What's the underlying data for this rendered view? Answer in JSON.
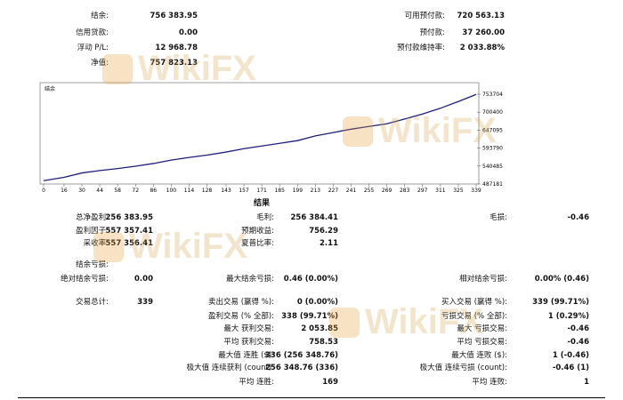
{
  "account": {
    "rows": [
      [
        [
          "结余:",
          "756 383.95"
        ],
        [
          "可用预付款:",
          "720 563.13"
        ]
      ],
      [
        [
          "信用贷款:",
          "0.00"
        ],
        [
          "预付款:",
          "37 260.00"
        ]
      ],
      [
        [
          "浮动 P/L:",
          "12 968.78"
        ],
        [
          "预付款维持率:",
          "2 033.88%"
        ]
      ],
      [
        [
          "净值:",
          "757 823.13"
        ],
        null
      ]
    ]
  },
  "chart_data": {
    "type": "line",
    "title": "结余",
    "x": [
      0,
      16,
      30,
      44,
      58,
      72,
      86,
      100,
      114,
      128,
      143,
      157,
      171,
      185,
      199,
      213,
      227,
      241,
      255,
      269,
      283,
      297,
      311,
      325,
      339
    ],
    "series": [
      {
        "name": "结余",
        "color": "#1c1f7a",
        "values": [
          497000,
          507000,
          520000,
          527000,
          533000,
          540000,
          548000,
          558000,
          566000,
          573000,
          582000,
          592000,
          600000,
          608000,
          616000,
          630000,
          640000,
          650000,
          658000,
          666000,
          680000,
          695000,
          712000,
          732000,
          753000
        ]
      }
    ],
    "xlim": [
      0,
      339
    ],
    "xticks": [
      0,
      16,
      30,
      44,
      58,
      72,
      86,
      100,
      114,
      128,
      143,
      157,
      171,
      185,
      199,
      213,
      227,
      241,
      255,
      269,
      283,
      297,
      311,
      325,
      339
    ],
    "ylim": [
      487181,
      753704
    ],
    "yticks": [
      487181,
      540485,
      593790,
      647095,
      700400,
      753704
    ]
  },
  "results": {
    "heading": "结果",
    "rows": [
      [
        [
          "总净盈利:",
          "256 383.95"
        ],
        [
          "毛利:",
          "256 384.41"
        ],
        [
          "毛损:",
          "-0.46"
        ]
      ],
      [
        [
          "盈利因子:",
          "557 357.41"
        ],
        [
          "预期收益:",
          "756.29"
        ],
        null
      ],
      [
        [
          "采收率:",
          "557 356.41"
        ],
        [
          "夏普比率:",
          "2.11"
        ],
        null
      ],
      [
        [
          "结余亏损:"
        ],
        null,
        null
      ],
      [
        [
          "绝对结余亏损:",
          "0.00"
        ],
        [
          "最大结余亏损:",
          "0.46 (0.00%)"
        ],
        [
          "相对结余亏损:",
          "0.00% (0.46)"
        ]
      ],
      [
        [
          "交易总计:",
          "339"
        ],
        [
          "卖出交易 (赢得 %):",
          "0 (0.00%)"
        ],
        [
          "买入交易 (赢得 %):",
          "339 (99.71%)"
        ]
      ],
      [
        null,
        [
          "盈利交易 (% 全部):",
          "338 (99.71%)"
        ],
        [
          "亏损交易 (% 全部):",
          "1 (0.29%)"
        ]
      ],
      [
        null,
        [
          "最大 获利交易:",
          "2 053.85"
        ],
        [
          "最大 亏损交易:",
          "-0.46"
        ]
      ],
      [
        null,
        [
          "平均 获利交易:",
          "758.53"
        ],
        [
          "平均 亏损交易:",
          "-0.46"
        ]
      ],
      [
        null,
        [
          "最大值 连胜 ($):",
          "336 (256 348.76)"
        ],
        [
          "最大值 连败 ($):",
          "1 (-0.46)"
        ]
      ],
      [
        null,
        [
          "极大值 连续获利 (count):",
          "256 348.76 (336)"
        ],
        [
          "极大值 连续亏损 (count):",
          "-0.46 (1)"
        ]
      ],
      [
        null,
        [
          "平均 连胜:",
          "169"
        ],
        [
          "平均 连败:",
          "1"
        ]
      ]
    ]
  },
  "watermark": "WikiFX"
}
